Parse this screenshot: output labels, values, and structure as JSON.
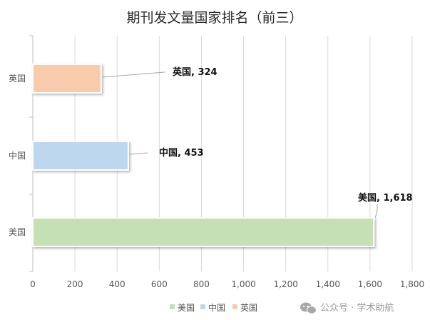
{
  "chart_data": {
    "type": "bar",
    "orientation": "horizontal",
    "title": "期刊发文量国家排名（前三）",
    "xlabel": "",
    "ylabel": "",
    "categories": [
      "美国",
      "中国",
      "英国"
    ],
    "values": [
      1618,
      453,
      324
    ],
    "value_labels": [
      "1,618",
      "453",
      "324"
    ],
    "data_labels": [
      "美国, 1,618",
      "中国, 453",
      "英国, 324"
    ],
    "colors": [
      "#c5e0b4",
      "#bdd7ee",
      "#f8cbad"
    ],
    "xlim": [
      0,
      1800
    ],
    "xticks": [
      0,
      200,
      400,
      600,
      800,
      1000,
      1200,
      1400,
      1600,
      1800
    ],
    "xtick_labels": [
      "0",
      "200",
      "400",
      "600",
      "800",
      "1,000",
      "1,200",
      "1,400",
      "1,600",
      "1,800"
    ],
    "grid": true,
    "legend": {
      "position": "bottom",
      "entries": [
        "美国",
        "中国",
        "英国"
      ]
    }
  },
  "watermark": {
    "text": "公众号 · 学术助航",
    "icon": "wechat-icon"
  }
}
